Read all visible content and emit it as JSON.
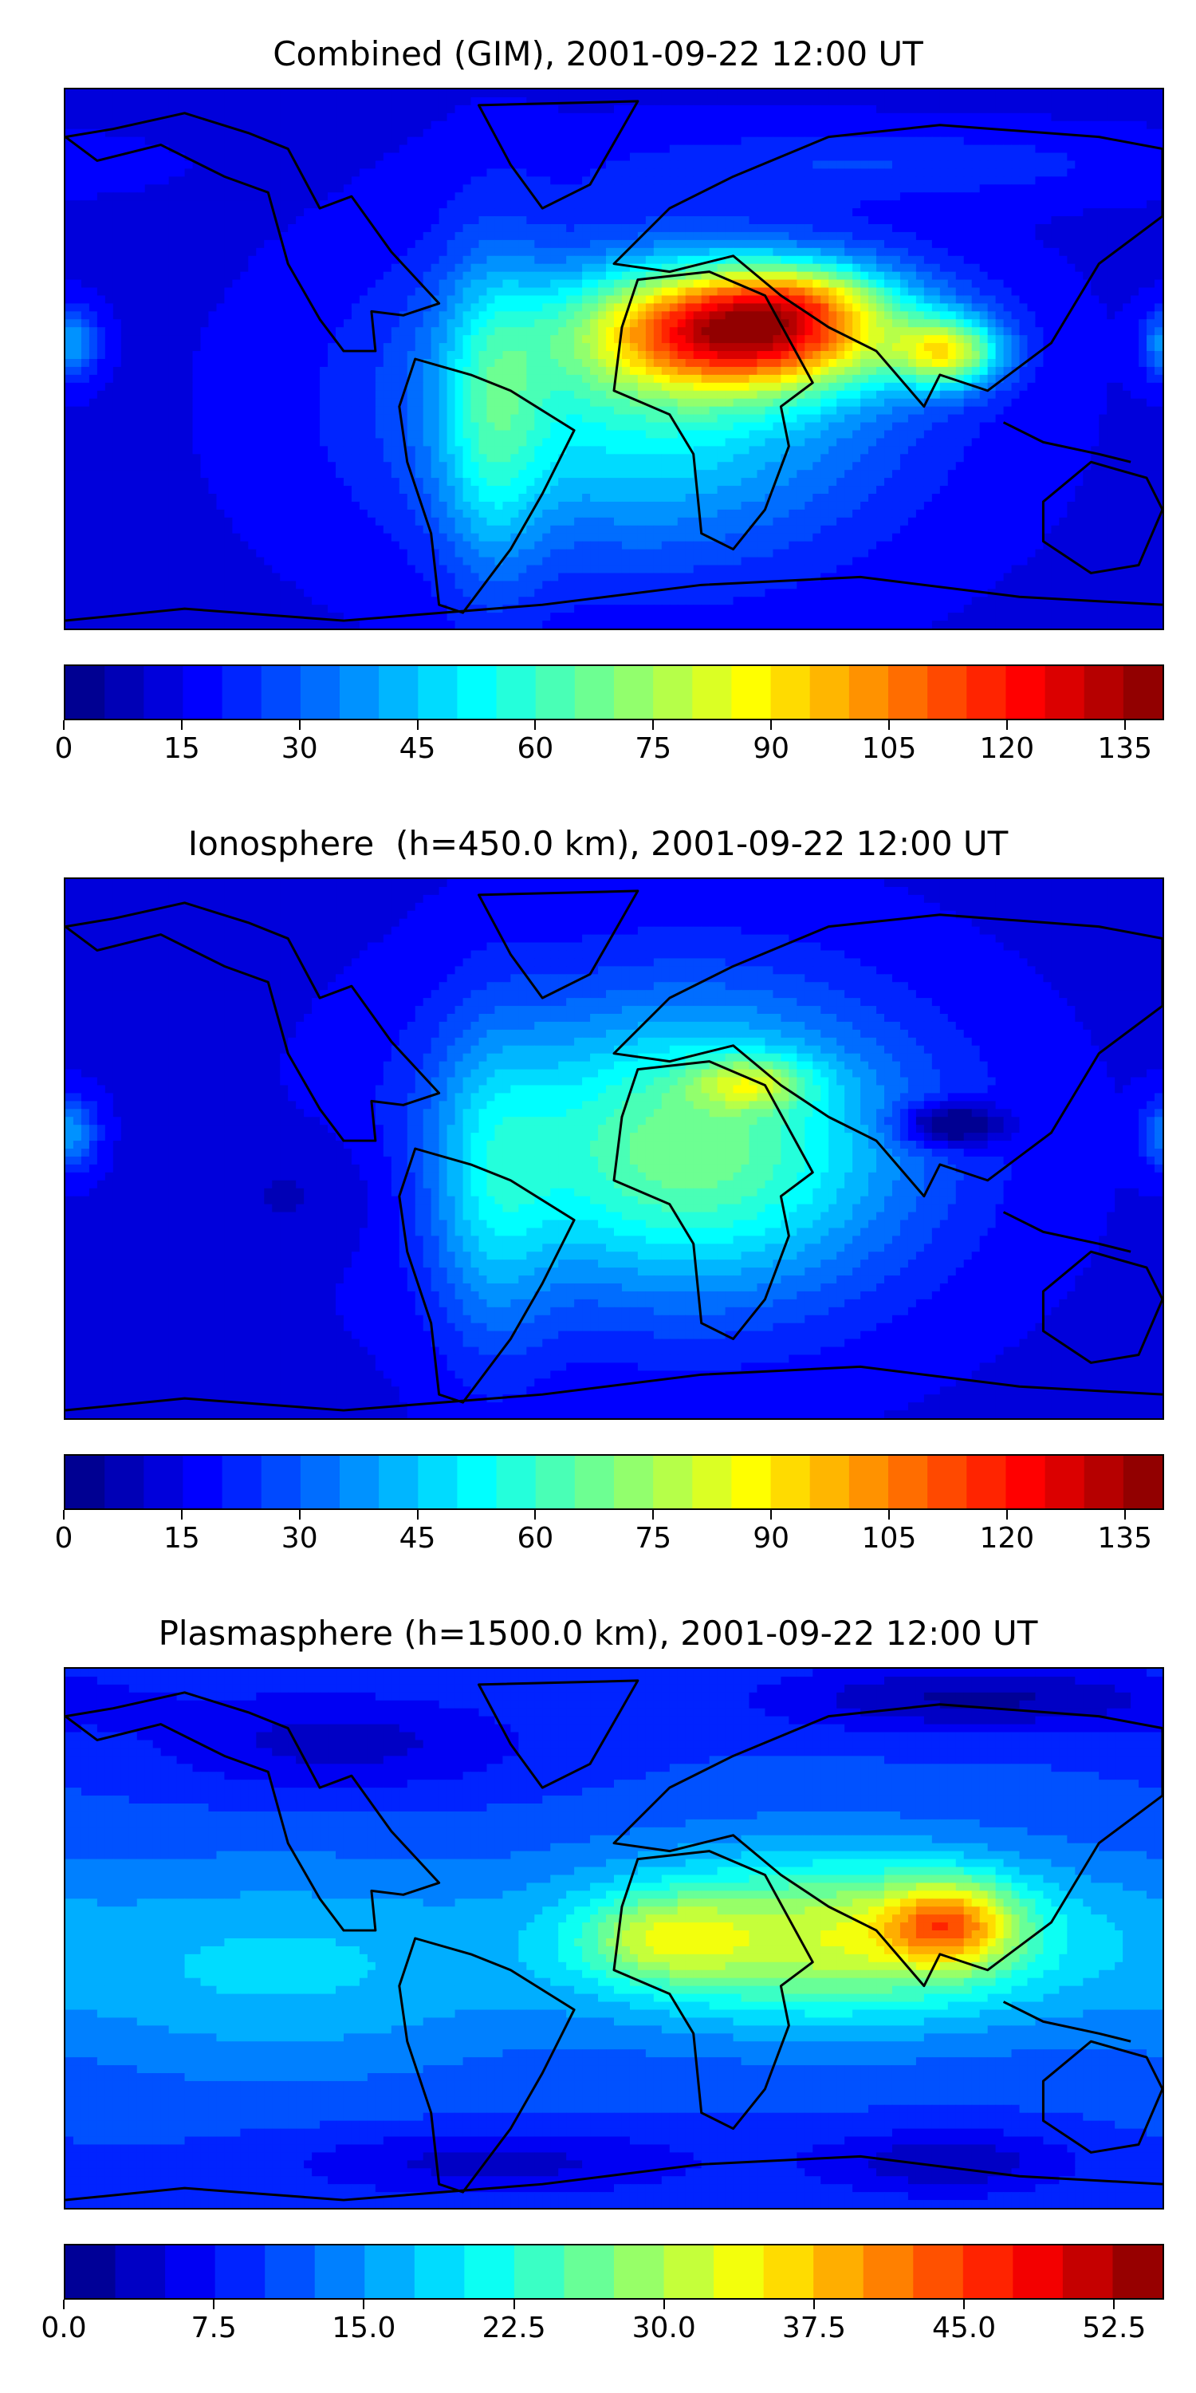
{
  "chart_data": [
    {
      "type": "heatmap",
      "title": "Combined (GIM), 2001-09-22 12:00 UT",
      "colorbar": {
        "colormap": "jet",
        "vmin": 0,
        "vmax": 140,
        "levels": 28,
        "ticks": [
          "0",
          "15",
          "30",
          "45",
          "60",
          "75",
          "90",
          "105",
          "120",
          "135"
        ],
        "tick_values": [
          0,
          15,
          30,
          45,
          60,
          75,
          90,
          105,
          120,
          135
        ]
      },
      "background": 14,
      "features": [
        {
          "lon": 45,
          "lat": 10,
          "sx": 35,
          "sy": 14,
          "value": 100
        },
        {
          "lon": 60,
          "lat": 22,
          "sx": 18,
          "sy": 7,
          "value": 18
        },
        {
          "lon": 110,
          "lat": 2,
          "sx": 12,
          "sy": 8,
          "value": 55
        },
        {
          "lon": 10,
          "lat": -15,
          "sx": 55,
          "sy": 35,
          "value": 40
        },
        {
          "lon": -40,
          "lat": -20,
          "sx": 12,
          "sy": 40,
          "value": 25
        },
        {
          "lon": -178,
          "lat": 5,
          "sx": 6,
          "sy": 8,
          "value": 26
        },
        {
          "lon": 90,
          "lat": 65,
          "sx": 60,
          "sy": 8,
          "value": 10
        }
      ]
    },
    {
      "type": "heatmap",
      "title": "Ionosphere  (h=450.0 km), 2001-09-22 12:00 UT",
      "colorbar": {
        "colormap": "jet",
        "vmin": 0,
        "vmax": 140,
        "levels": 28,
        "ticks": [
          "0",
          "15",
          "30",
          "45",
          "60",
          "75",
          "90",
          "105",
          "120",
          "135"
        ],
        "tick_values": [
          0,
          15,
          30,
          45,
          60,
          75,
          90,
          105,
          120,
          135
        ]
      },
      "background": 14,
      "features": [
        {
          "lon": 25,
          "lat": 0,
          "sx": 50,
          "sy": 35,
          "value": 55
        },
        {
          "lon": 45,
          "lat": 22,
          "sx": 14,
          "sy": 6,
          "value": 30
        },
        {
          "lon": 110,
          "lat": 8,
          "sx": 12,
          "sy": 5,
          "value": -30
        },
        {
          "lon": -40,
          "lat": -15,
          "sx": 14,
          "sy": 40,
          "value": 20
        },
        {
          "lon": -178,
          "lat": 5,
          "sx": 6,
          "sy": 8,
          "value": 24
        },
        {
          "lon": -100,
          "lat": -15,
          "sx": 25,
          "sy": 15,
          "value": -6
        }
      ]
    },
    {
      "type": "heatmap",
      "title": "Plasmasphere (h=1500.0 km), 2001-09-22 12:00 UT",
      "colorbar": {
        "colormap": "jet",
        "vmin": 0,
        "vmax": 55,
        "levels": 22,
        "ticks": [
          "0.0",
          "7.5",
          "15.0",
          "22.5",
          "30.0",
          "37.5",
          "45.0",
          "52.5"
        ],
        "tick_values": [
          0,
          7.5,
          15,
          22.5,
          30,
          37.5,
          45,
          52.5
        ]
      },
      "background": 10,
      "features": [
        {
          "lon": 70,
          "lat": 0,
          "sx": 55,
          "sy": 20,
          "value": 22
        },
        {
          "lon": 15,
          "lat": 0,
          "sx": 18,
          "sy": 10,
          "value": 10
        },
        {
          "lon": 110,
          "lat": 5,
          "sx": 15,
          "sy": 10,
          "value": 18
        },
        {
          "lon": -110,
          "lat": -10,
          "sx": 60,
          "sy": 25,
          "value": 8
        },
        {
          "lon": -90,
          "lat": 65,
          "sx": 45,
          "sy": 12,
          "value": -6
        },
        {
          "lon": 120,
          "lat": 80,
          "sx": 50,
          "sy": 8,
          "value": -8
        },
        {
          "lon": -40,
          "lat": -75,
          "sx": 50,
          "sy": 8,
          "value": -6
        },
        {
          "lon": 110,
          "lat": -75,
          "sx": 30,
          "sy": 8,
          "value": -7
        }
      ]
    }
  ]
}
